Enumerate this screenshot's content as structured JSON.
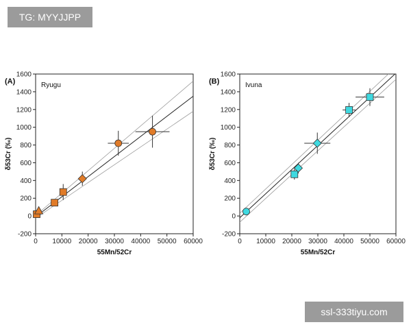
{
  "watermarks": {
    "top": "TG: MYYJJPP",
    "bottom": "ssl-333tiyu.com"
  },
  "colors": {
    "ryugu": "#e07b28",
    "ivuna": "#3fd9e0",
    "marker_edge": "#333333"
  },
  "chart_data": [
    {
      "type": "scatter",
      "panel_label": "(A)",
      "title": "Ryugu",
      "xlabel": "55Mn/52Cr",
      "ylabel": "δ53Cr (‰)",
      "xlim": [
        0,
        60000
      ],
      "ylim": [
        -200,
        1600
      ],
      "xticks": [
        0,
        10000,
        20000,
        30000,
        40000,
        50000,
        60000
      ],
      "yticks": [
        -200,
        0,
        200,
        400,
        600,
        800,
        1000,
        1200,
        1400,
        1600
      ],
      "points": [
        {
          "x": 400,
          "y": 20,
          "xerr": 200,
          "yerr": 20,
          "marker": "square"
        },
        {
          "x": 1200,
          "y": 60,
          "xerr": 300,
          "yerr": 25,
          "marker": "triangle"
        },
        {
          "x": 7200,
          "y": 150,
          "xerr": 500,
          "yerr": 30,
          "marker": "square"
        },
        {
          "x": 10500,
          "y": 270,
          "xerr": 1000,
          "yerr": 90,
          "marker": "square"
        },
        {
          "x": 17800,
          "y": 420,
          "xerr": 800,
          "yerr": 80,
          "marker": "diamond"
        },
        {
          "x": 31500,
          "y": 820,
          "xerr": 4000,
          "yerr": 140,
          "marker": "circle"
        },
        {
          "x": 44500,
          "y": 950,
          "xerr": 6500,
          "yerr": 180,
          "marker": "circle"
        }
      ],
      "fit": {
        "x0": 0,
        "y0": -10,
        "x1": 60000,
        "y1": 1350
      },
      "band_upper": {
        "x0": 0,
        "y0": 5,
        "x1": 60000,
        "y1": 1520
      },
      "band_lower": {
        "x0": 0,
        "y0": -25,
        "x1": 60000,
        "y1": 1180
      }
    },
    {
      "type": "scatter",
      "panel_label": "(B)",
      "title": "Ivuna",
      "xlabel": "55Mn/52Cr",
      "ylabel": "δ53Cr (‰)",
      "xlim": [
        0,
        60000
      ],
      "ylim": [
        -200,
        1600
      ],
      "xticks": [
        0,
        10000,
        20000,
        30000,
        40000,
        50000,
        60000
      ],
      "yticks": [
        -200,
        0,
        200,
        400,
        600,
        800,
        1000,
        1200,
        1400,
        1600
      ],
      "points": [
        {
          "x": 2500,
          "y": 50,
          "xerr": 300,
          "yerr": 20,
          "marker": "circle"
        },
        {
          "x": 21000,
          "y": 470,
          "xerr": 800,
          "yerr": 60,
          "marker": "square"
        },
        {
          "x": 22500,
          "y": 540,
          "xerr": 800,
          "yerr": 60,
          "marker": "diamond"
        },
        {
          "x": 29800,
          "y": 820,
          "xerr": 5000,
          "yerr": 120,
          "marker": "diamond"
        },
        {
          "x": 42000,
          "y": 1195,
          "xerr": 2500,
          "yerr": 80,
          "marker": "square"
        },
        {
          "x": 50000,
          "y": 1340,
          "xerr": 5500,
          "yerr": 100,
          "marker": "square"
        }
      ],
      "fit": {
        "x0": 0,
        "y0": -20,
        "x1": 60000,
        "y1": 1610
      },
      "band_upper": {
        "x0": 0,
        "y0": 30,
        "x1": 60000,
        "y1": 1680
      },
      "band_lower": {
        "x0": 0,
        "y0": -70,
        "x1": 60000,
        "y1": 1540
      }
    }
  ]
}
